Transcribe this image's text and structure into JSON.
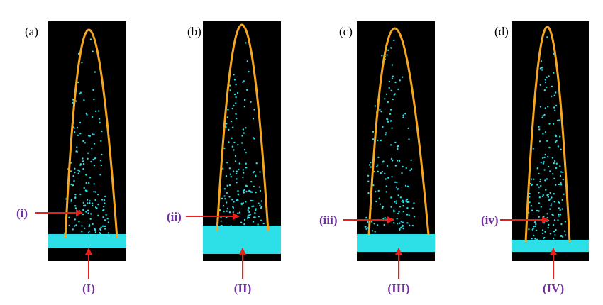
{
  "panels": [
    {
      "label": "(a)",
      "inner_label": "(i)",
      "base_label": "(I)"
    },
    {
      "label": "(b)",
      "inner_label": "(ii)",
      "base_label": "(II)"
    },
    {
      "label": "(c)",
      "inner_label": "(iii)",
      "base_label": "(III)"
    },
    {
      "label": "(d)",
      "inner_label": "(iv)",
      "base_label": "(IV)"
    }
  ]
}
